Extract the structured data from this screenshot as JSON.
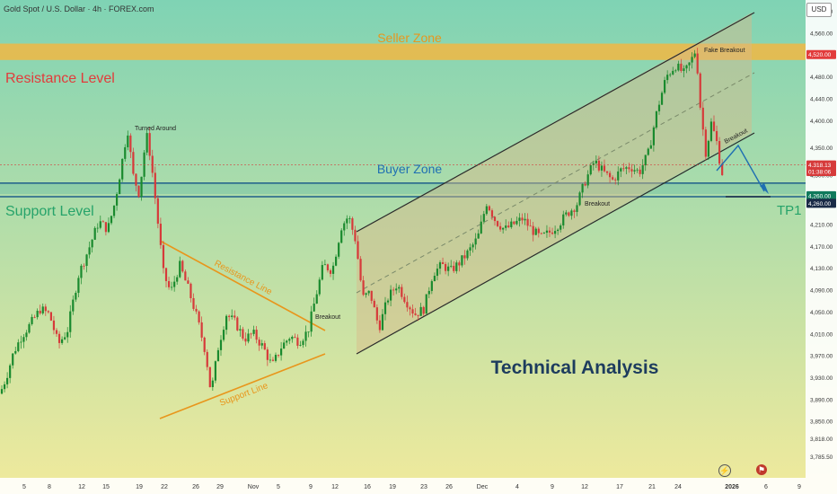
{
  "header": {
    "title": "Gold Spot / U.S. Dollar · 4h · FOREX.com"
  },
  "currency_button": "USD",
  "icons": {
    "lightning": "lightning-icon",
    "flag": "us-flag-icon"
  },
  "colors": {
    "background_top": "#7fd3b4",
    "background_bottom": "#f1ea9c",
    "up_candle": "#1a8a2e",
    "down_candle": "#d63a3a",
    "seller_zone": "#f1b743",
    "resistance_text": "#e23b3b",
    "support_text": "#26a36a",
    "buyer_zone_line": "#1f5f8a",
    "channel_line": "#2b2b2b",
    "triangle_line": "#e8961c",
    "arrow": "#1f6fb2",
    "analysis_text": "#1d3c5e"
  },
  "chart_data": {
    "type": "candlestick",
    "symbol": "XAUUSD",
    "timeframe": "4h",
    "ylim": [
      3770,
      4620
    ],
    "y_ticks": [
      "4,600.00",
      "4,560.00",
      "4,480.00",
      "4,440.00",
      "4,400.00",
      "4,350.00",
      "4,300.00",
      "4,210.00",
      "4,170.00",
      "4,130.00",
      "4,090.00",
      "4,050.00",
      "4,010.00",
      "3,970.00",
      "3,930.00",
      "3,890.00",
      "3,850.00",
      "3,818.00",
      "3,785.50"
    ],
    "x_ticks": [
      "5",
      "8",
      "12",
      "15",
      "19",
      "22",
      "26",
      "29",
      "Nov",
      "5",
      "9",
      "12",
      "16",
      "19",
      "23",
      "26",
      "Dec",
      "4",
      "9",
      "12",
      "17",
      "21",
      "24",
      "2026",
      "6",
      "9"
    ],
    "price_labels": [
      {
        "value": "4,520.00",
        "kind": "seller"
      },
      {
        "value": "4,318.13",
        "kind": "last"
      },
      {
        "value": "01:38:06",
        "kind": "countdown"
      },
      {
        "value": "4,260.00",
        "kind": "support"
      },
      {
        "value": "4,260.00",
        "kind": "target"
      }
    ],
    "last_price": 4318.13,
    "levels": {
      "seller_zone": [
        4510,
        4540
      ],
      "buyer_zone": [
        4265,
        4285
      ],
      "support": 4260
    },
    "price_path": [
      [
        0,
        3900
      ],
      [
        7,
        3930
      ],
      [
        15,
        3975
      ],
      [
        24,
        4005
      ],
      [
        33,
        4025
      ],
      [
        45,
        4055
      ],
      [
        55,
        4045
      ],
      [
        65,
        3990
      ],
      [
        75,
        4015
      ],
      [
        87,
        4115
      ],
      [
        100,
        4170
      ],
      [
        110,
        4215
      ],
      [
        120,
        4200
      ],
      [
        128,
        4250
      ],
      [
        136,
        4325
      ],
      [
        142,
        4385
      ],
      [
        148,
        4300
      ],
      [
        155,
        4265
      ],
      [
        163,
        4375
      ],
      [
        168,
        4330
      ],
      [
        176,
        4210
      ],
      [
        182,
        4120
      ],
      [
        190,
        4085
      ],
      [
        200,
        4135
      ],
      [
        210,
        4090
      ],
      [
        220,
        4035
      ],
      [
        229,
        3975
      ],
      [
        235,
        3900
      ],
      [
        243,
        3985
      ],
      [
        252,
        4045
      ],
      [
        262,
        4030
      ],
      [
        272,
        4000
      ],
      [
        282,
        4010
      ],
      [
        293,
        3985
      ],
      [
        303,
        3950
      ],
      [
        313,
        3985
      ],
      [
        323,
        4005
      ],
      [
        333,
        3995
      ],
      [
        343,
        4015
      ],
      [
        352,
        4080
      ],
      [
        360,
        4135
      ],
      [
        370,
        4125
      ],
      [
        380,
        4205
      ],
      [
        388,
        4225
      ],
      [
        396,
        4180
      ],
      [
        404,
        4075
      ],
      [
        412,
        4085
      ],
      [
        422,
        4020
      ],
      [
        432,
        4075
      ],
      [
        442,
        4100
      ],
      [
        452,
        4070
      ],
      [
        462,
        4045
      ],
      [
        472,
        4055
      ],
      [
        482,
        4120
      ],
      [
        492,
        4135
      ],
      [
        502,
        4125
      ],
      [
        512,
        4140
      ],
      [
        522,
        4160
      ],
      [
        532,
        4185
      ],
      [
        542,
        4250
      ],
      [
        552,
        4215
      ],
      [
        562,
        4200
      ],
      [
        572,
        4210
      ],
      [
        582,
        4220
      ],
      [
        592,
        4200
      ],
      [
        602,
        4185
      ],
      [
        612,
        4195
      ],
      [
        622,
        4210
      ],
      [
        632,
        4230
      ],
      [
        642,
        4245
      ],
      [
        652,
        4290
      ],
      [
        662,
        4325
      ],
      [
        672,
        4305
      ],
      [
        682,
        4290
      ],
      [
        692,
        4310
      ],
      [
        702,
        4315
      ],
      [
        712,
        4305
      ],
      [
        722,
        4340
      ],
      [
        732,
        4420
      ],
      [
        742,
        4480
      ],
      [
        752,
        4500
      ],
      [
        762,
        4485
      ],
      [
        770,
        4510
      ],
      [
        775,
        4530
      ],
      [
        780,
        4420
      ],
      [
        786,
        4340
      ],
      [
        792,
        4395
      ],
      [
        798,
        4360
      ],
      [
        802,
        4320
      ],
      [
        806,
        4290
      ]
    ],
    "annotations": [
      {
        "text": "Seller Zone",
        "role": "seller_zone"
      },
      {
        "text": "Resistance Level",
        "role": "resistance"
      },
      {
        "text": "Buyer Zone",
        "role": "buyer_zone"
      },
      {
        "text": "Support Level",
        "role": "support"
      },
      {
        "text": "TP1",
        "role": "target"
      },
      {
        "text": "Turned Around",
        "role": "note"
      },
      {
        "text": "Resistance Line",
        "role": "triangle_top"
      },
      {
        "text": "Support Line",
        "role": "triangle_bottom"
      },
      {
        "text": "Breakout",
        "role": "breakout_triangle"
      },
      {
        "text": "Breakout",
        "role": "breakout_channel_low"
      },
      {
        "text": "Fake Breakout",
        "role": "fake_breakout"
      },
      {
        "text": "Breakout",
        "role": "breakout_channel_end"
      },
      {
        "text": "Technical Analysis",
        "role": "watermark"
      }
    ],
    "grid": false
  }
}
